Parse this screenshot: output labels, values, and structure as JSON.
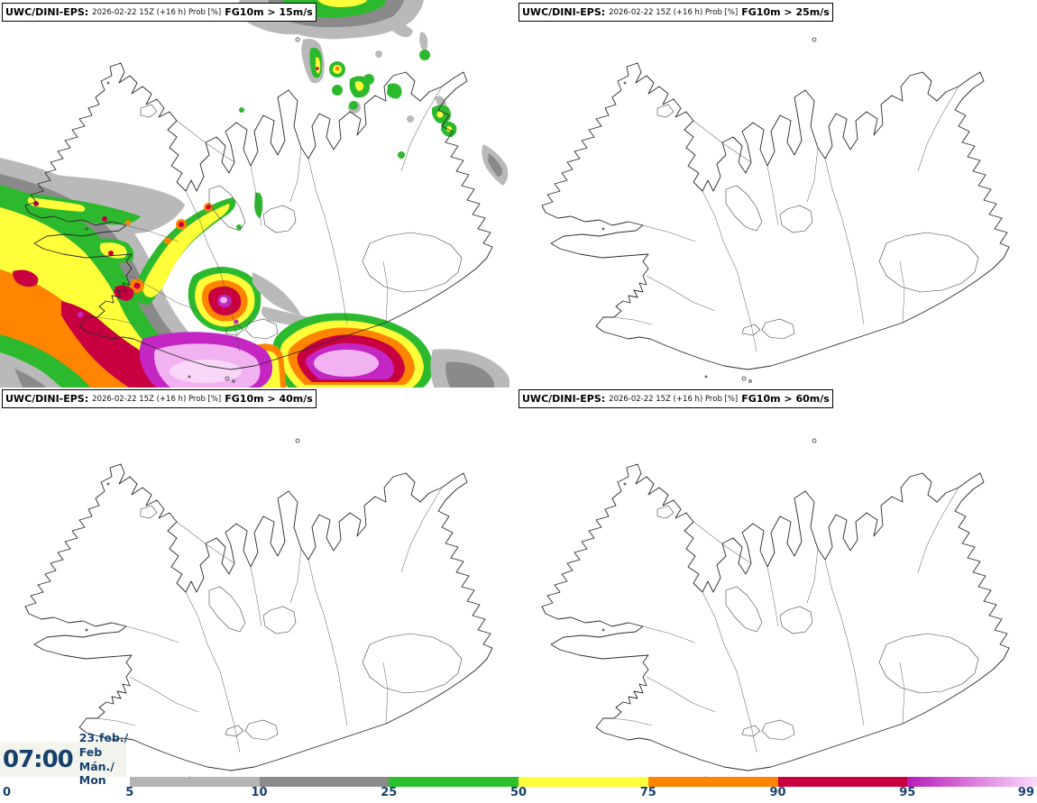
{
  "panels": [
    {
      "model_label": "UWC/DINI-EPS:",
      "info": "2026-02-22 15Z (+16 h) Prob [%]",
      "threshold": "FG10m > 15m/s"
    },
    {
      "model_label": "UWC/DINI-EPS:",
      "info": "2026-02-22 15Z (+16 h) Prob [%]",
      "threshold": "FG10m > 25m/s"
    },
    {
      "model_label": "UWC/DINI-EPS:",
      "info": "2026-02-22 15Z (+16 h) Prob [%]",
      "threshold": "FG10m > 40m/s"
    },
    {
      "model_label": "UWC/DINI-EPS:",
      "info": "2026-02-22 15Z (+16 h) Prob [%]",
      "threshold": "FG10m > 60m/s"
    }
  ],
  "clock": {
    "time": "07:00",
    "date": "23.feb./ Feb",
    "day": "Mán./ Mon"
  },
  "legend": {
    "labels": [
      "0",
      "5",
      "10",
      "25",
      "50",
      "75",
      "90",
      "95",
      "99"
    ],
    "segment_colors": [
      "#b4b4b4",
      "#8a8a8a",
      "#2bbf2b",
      "#ffff3c",
      "#ff8400",
      "#c80040",
      [
        "#b81cb8",
        "#fbd9fb"
      ]
    ],
    "label_color": "#17406d"
  },
  "palette": {
    "light_gray": "#b9b9b9",
    "dark_gray": "#8a8a8a",
    "green": "#2db92d",
    "yellow": "#ffff3a",
    "orange": "#ff8400",
    "crimson": "#c80040",
    "magenta": "#c426c4",
    "light_pink": "#f2b2f2",
    "lighter_pink": "#f9d7f9",
    "navy_text": "#17406d",
    "coastline": "#2a2a2a"
  }
}
